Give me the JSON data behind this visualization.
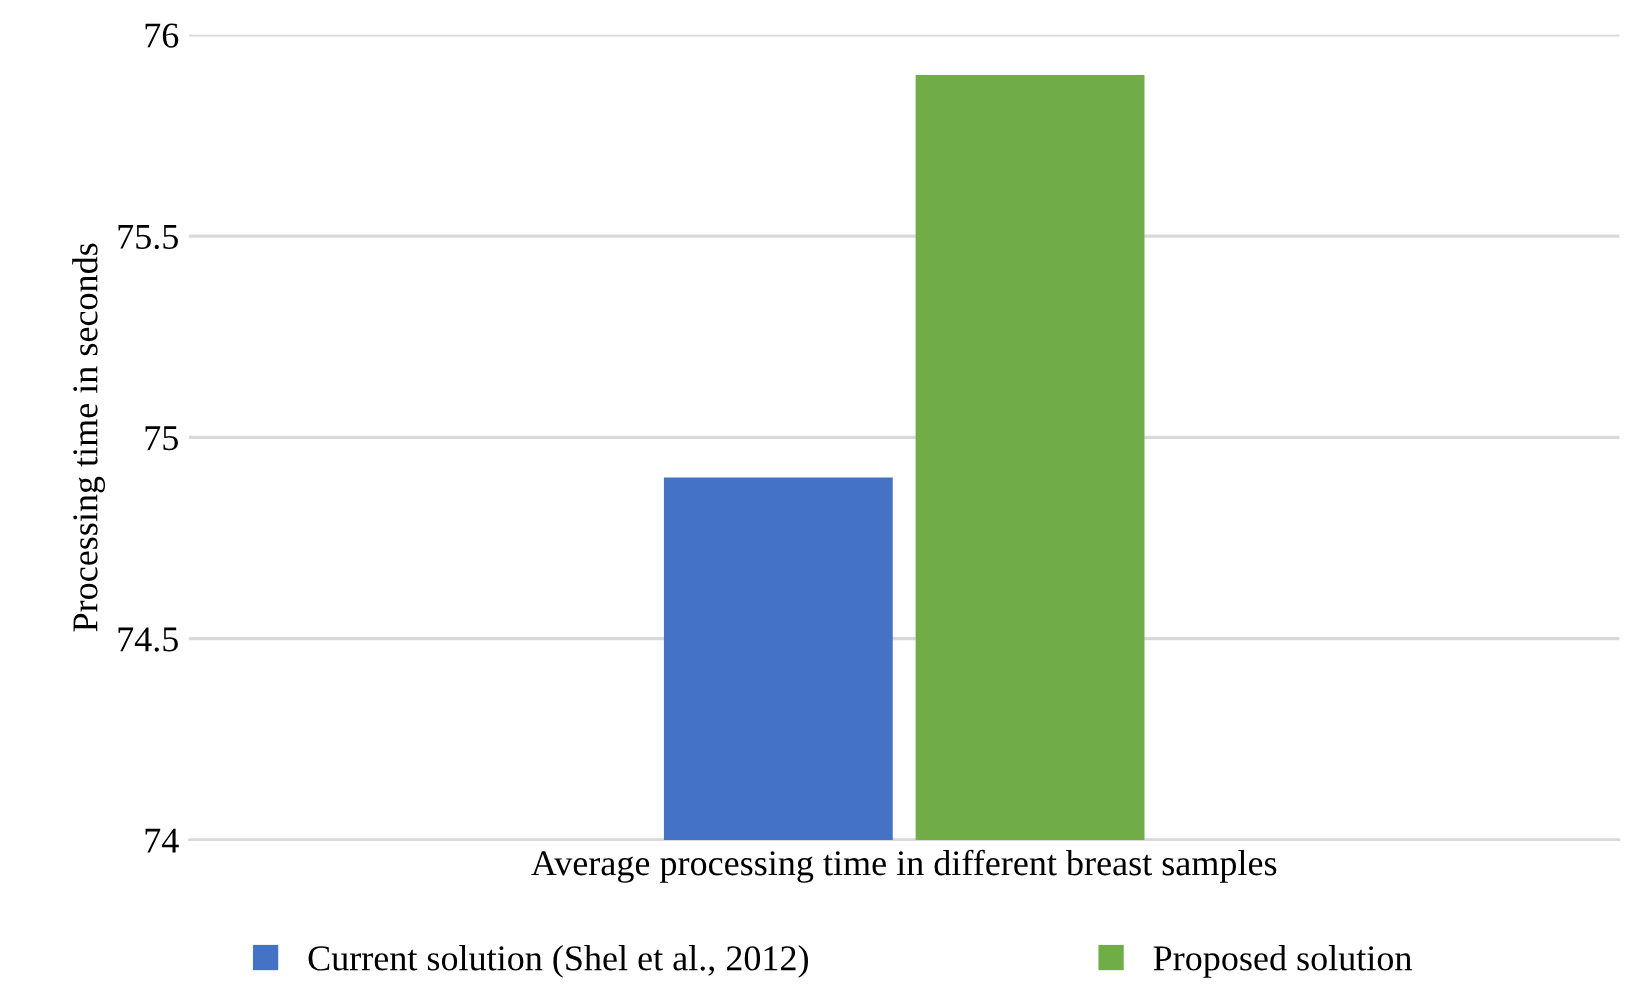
{
  "chart_data": {
    "type": "bar",
    "ylabel": "Processing time in seconds",
    "categories": [
      "Average processing time in different breast samples"
    ],
    "series": [
      {
        "name": "Current solution (Shel et al., 2012)",
        "color": "#4472c4",
        "values": [
          74.9
        ]
      },
      {
        "name": "Proposed solution",
        "color": "#70ad47",
        "values": [
          75.9
        ]
      }
    ],
    "ylim": [
      74,
      76
    ],
    "yticks": [
      74,
      74.5,
      75,
      75.5,
      76
    ],
    "grid": "y",
    "legend": "bottom"
  }
}
